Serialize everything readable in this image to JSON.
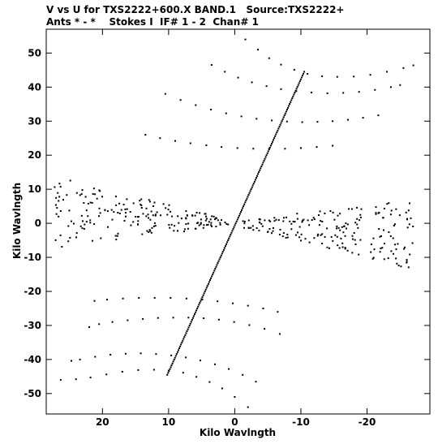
{
  "header": {
    "line1": "V vs U for TXS2222+600.X BAND.1   Source:TXS2222+",
    "line2": "Ants * - *    Stokes I  IF# 1 - 2  Chan# 1"
  },
  "chart_data": {
    "type": "scatter",
    "title": "V vs U for TXS2222+600.X BAND.1   Source:TXS2222+",
    "subtitle": "Ants * - *    Stokes I  IF# 1 - 2  Chan# 1",
    "xlabel": "Kilo Wavlngth",
    "ylabel": "Kilo Wavlngth",
    "xlim": [
      28.5,
      -29.5
    ],
    "ylim": [
      -56,
      57
    ],
    "x_reversed": true,
    "xticks": [
      20,
      10,
      0,
      -10,
      -20
    ],
    "xtick_labels": [
      "20",
      "10",
      "0",
      "-10",
      "-20"
    ],
    "yticks": [
      50,
      40,
      30,
      20,
      10,
      0,
      -10,
      -20,
      -30,
      -40,
      -50
    ],
    "ytick_labels": [
      "50",
      "40",
      "30",
      "20",
      "10",
      "0",
      "-10",
      "-20",
      "-30",
      "-40",
      "-50"
    ],
    "grid": false,
    "arcs": [
      [
        [
          -1.6,
          54.0
        ],
        [
          -3.5,
          51.0
        ],
        [
          -5.2,
          48.5
        ],
        [
          -7.0,
          46.6
        ],
        [
          -9.0,
          45.1
        ],
        [
          -11.0,
          43.9
        ],
        [
          -13.2,
          43.2
        ],
        [
          -15.5,
          43.0
        ],
        [
          -18.0,
          43.1
        ],
        [
          -20.5,
          43.6
        ],
        [
          -23.0,
          44.5
        ],
        [
          -25.5,
          45.6
        ],
        [
          -27.0,
          46.4
        ]
      ],
      [
        [
          3.5,
          46.5
        ],
        [
          1.5,
          44.5
        ],
        [
          -0.5,
          42.8
        ],
        [
          -2.6,
          41.4
        ],
        [
          -4.8,
          40.3
        ],
        [
          -7.0,
          39.4
        ],
        [
          -9.3,
          38.8
        ],
        [
          -11.6,
          38.4
        ],
        [
          -14.0,
          38.2
        ],
        [
          -16.4,
          38.3
        ],
        [
          -18.8,
          38.6
        ],
        [
          -21.2,
          39.2
        ],
        [
          -23.6,
          40.0
        ],
        [
          -25.0,
          40.6
        ]
      ],
      [
        [
          10.5,
          38.0
        ],
        [
          8.2,
          36.2
        ],
        [
          5.9,
          34.7
        ],
        [
          3.6,
          33.4
        ],
        [
          1.3,
          32.3
        ],
        [
          -1.0,
          31.4
        ],
        [
          -3.3,
          30.7
        ],
        [
          -5.6,
          30.2
        ],
        [
          -7.9,
          29.9
        ],
        [
          -10.2,
          29.7
        ],
        [
          -12.5,
          29.8
        ],
        [
          -14.8,
          30.0
        ],
        [
          -17.1,
          30.4
        ],
        [
          -19.4,
          31.0
        ],
        [
          -21.7,
          31.7
        ]
      ],
      [
        [
          13.5,
          26.0
        ],
        [
          11.3,
          25.0
        ],
        [
          9.0,
          24.2
        ],
        [
          6.7,
          23.5
        ],
        [
          4.3,
          22.9
        ],
        [
          2.0,
          22.4
        ],
        [
          -0.4,
          22.1
        ],
        [
          -2.8,
          21.9
        ],
        [
          -5.2,
          21.9
        ],
        [
          -7.6,
          21.9
        ],
        [
          -10.0,
          22.1
        ],
        [
          -12.4,
          22.4
        ],
        [
          -14.8,
          22.8
        ]
      ],
      [
        [
          -2.0,
          -54.0
        ],
        [
          0.0,
          -51.0
        ],
        [
          1.9,
          -48.5
        ],
        [
          3.8,
          -46.6
        ],
        [
          5.8,
          -45.1
        ],
        [
          7.8,
          -43.9
        ],
        [
          10.0,
          -43.3
        ],
        [
          12.2,
          -43.0
        ],
        [
          14.6,
          -43.1
        ],
        [
          17.0,
          -43.6
        ],
        [
          19.4,
          -44.4
        ],
        [
          21.8,
          -45.3
        ],
        [
          24.0,
          -45.8
        ],
        [
          26.3,
          -46.0
        ]
      ],
      [
        [
          -3.2,
          -46.5
        ],
        [
          -1.2,
          -44.5
        ],
        [
          0.9,
          -42.8
        ],
        [
          3.0,
          -41.4
        ],
        [
          5.2,
          -40.3
        ],
        [
          7.4,
          -39.4
        ],
        [
          9.6,
          -38.8
        ],
        [
          11.9,
          -38.4
        ],
        [
          14.2,
          -38.2
        ],
        [
          16.5,
          -38.3
        ],
        [
          18.8,
          -38.6
        ],
        [
          21.1,
          -39.2
        ],
        [
          23.4,
          -40.0
        ],
        [
          24.7,
          -40.4
        ]
      ],
      [
        [
          -6.8,
          -32.5
        ],
        [
          -4.5,
          -31.0
        ],
        [
          -2.2,
          -29.9
        ],
        [
          0.1,
          -29.0
        ],
        [
          2.4,
          -28.3
        ],
        [
          4.7,
          -27.9
        ],
        [
          7.0,
          -27.7
        ],
        [
          9.3,
          -27.7
        ],
        [
          11.6,
          -27.8
        ],
        [
          13.9,
          -28.1
        ],
        [
          16.2,
          -28.5
        ],
        [
          18.5,
          -29.0
        ],
        [
          20.5,
          -29.6
        ],
        [
          22.0,
          -30.5
        ]
      ],
      [
        [
          -6.5,
          -26.0
        ],
        [
          -4.3,
          -25.0
        ],
        [
          -2.0,
          -24.2
        ],
        [
          0.3,
          -23.5
        ],
        [
          2.6,
          -22.9
        ],
        [
          4.9,
          -22.4
        ],
        [
          7.3,
          -22.1
        ],
        [
          9.7,
          -21.9
        ],
        [
          12.1,
          -21.9
        ],
        [
          14.5,
          -21.9
        ],
        [
          16.9,
          -22.1
        ],
        [
          19.3,
          -22.4
        ],
        [
          21.2,
          -22.8
        ]
      ]
    ],
    "radial_line": {
      "from": [
        10.2,
        -44.5
      ],
      "to": [
        -10.5,
        44.5
      ],
      "points": 160
    },
    "cloud": {
      "centers": [
        [
          1.0,
          0.2
        ],
        [
          -1.0,
          -0.2
        ]
      ],
      "extents": [
        [
          27.3,
          9.0
        ],
        [
          -27.3,
          -9.0
        ]
      ],
      "count": 380
    }
  }
}
